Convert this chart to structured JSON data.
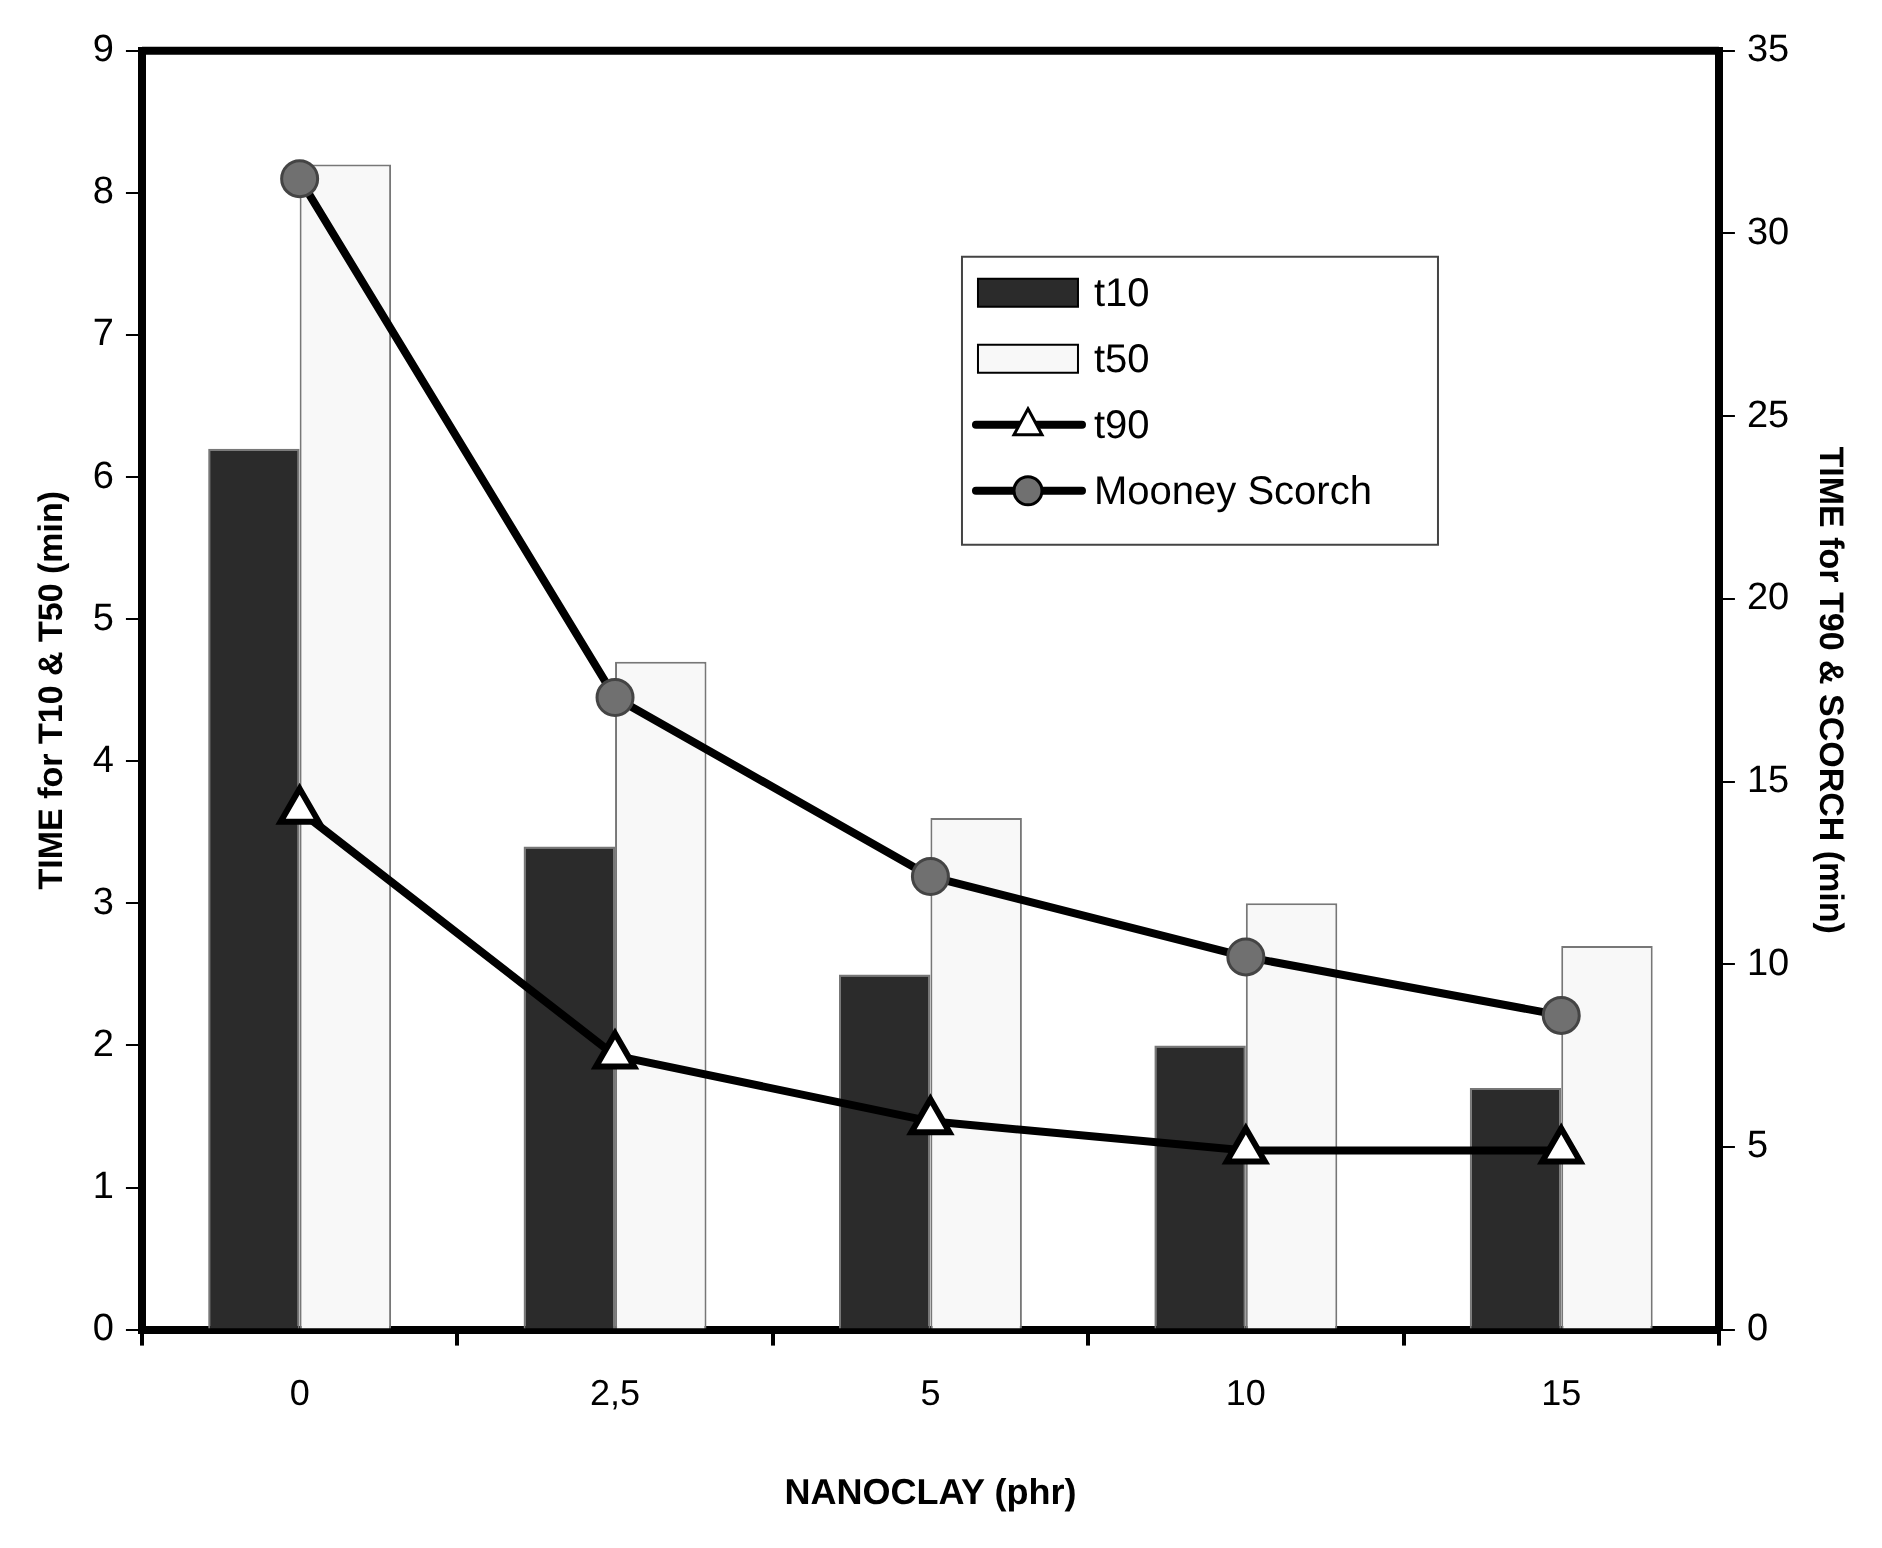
{
  "chart_data": {
    "type": "bar",
    "xlabel": "NANOCLAY (phr)",
    "ylabel": "TIME for T10 & T50 (min)",
    "y2label": "TIME for T90 & SCORCH (min)",
    "categories": [
      "0",
      "2,5",
      "5",
      "10",
      "15"
    ],
    "series": [
      {
        "name": "t10",
        "color": "#2b2b2b",
        "values": [
          6.2,
          3.4,
          2.5,
          2.0,
          1.7
        ]
      },
      {
        "name": "t50",
        "color": "#f8f8f8",
        "values": [
          8.2,
          4.7,
          3.6,
          3.0,
          2.7
        ]
      },
      {
        "name": "t90",
        "type": "line",
        "axis": "y2",
        "marker": "triangle",
        "color": "#000000",
        "values": [
          14.2,
          7.5,
          5.7,
          4.9,
          4.9
        ]
      },
      {
        "name": "Mooney Scorch",
        "type": "line",
        "axis": "y2",
        "marker": "circle",
        "color": "#000000",
        "values": [
          31.5,
          17.3,
          12.4,
          10.2,
          8.6
        ]
      }
    ],
    "ylim": [
      0,
      9
    ],
    "yticks": [
      0,
      1,
      2,
      3,
      4,
      5,
      6,
      7,
      8,
      9
    ],
    "y2lim": [
      0,
      35
    ],
    "y2ticks": [
      0,
      5,
      10,
      15,
      20,
      25,
      30,
      35
    ],
    "legend": "top right"
  }
}
